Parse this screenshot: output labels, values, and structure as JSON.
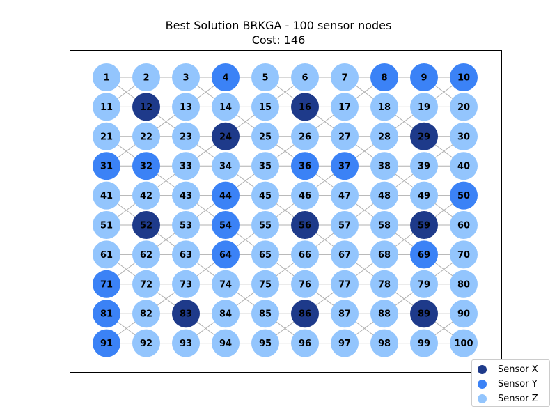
{
  "title_line1": "Best Solution BRKGA - 100 sensor nodes",
  "title_line2": "Cost: 146",
  "colors": {
    "sensor_x": "#1e3a8a",
    "sensor_y": "#3b82f6",
    "sensor_z": "#93c5fd",
    "edge": "#b0b0b0"
  },
  "legend": [
    {
      "label": "Sensor X",
      "type": "X"
    },
    {
      "label": "Sensor Y",
      "type": "Y"
    },
    {
      "label": "Sensor Z",
      "type": "Z"
    }
  ],
  "grid": {
    "rows": 10,
    "cols": 10
  },
  "nodes": [
    {
      "id": 1,
      "type": "Z"
    },
    {
      "id": 2,
      "type": "Z"
    },
    {
      "id": 3,
      "type": "Z"
    },
    {
      "id": 4,
      "type": "Y"
    },
    {
      "id": 5,
      "type": "Z"
    },
    {
      "id": 6,
      "type": "Z"
    },
    {
      "id": 7,
      "type": "Z"
    },
    {
      "id": 8,
      "type": "Y"
    },
    {
      "id": 9,
      "type": "Y"
    },
    {
      "id": 10,
      "type": "Y"
    },
    {
      "id": 11,
      "type": "Z"
    },
    {
      "id": 12,
      "type": "X"
    },
    {
      "id": 13,
      "type": "Z"
    },
    {
      "id": 14,
      "type": "Z"
    },
    {
      "id": 15,
      "type": "Z"
    },
    {
      "id": 16,
      "type": "X"
    },
    {
      "id": 17,
      "type": "Z"
    },
    {
      "id": 18,
      "type": "Z"
    },
    {
      "id": 19,
      "type": "Z"
    },
    {
      "id": 20,
      "type": "Z"
    },
    {
      "id": 21,
      "type": "Z"
    },
    {
      "id": 22,
      "type": "Z"
    },
    {
      "id": 23,
      "type": "Z"
    },
    {
      "id": 24,
      "type": "X"
    },
    {
      "id": 25,
      "type": "Z"
    },
    {
      "id": 26,
      "type": "Z"
    },
    {
      "id": 27,
      "type": "Z"
    },
    {
      "id": 28,
      "type": "Z"
    },
    {
      "id": 29,
      "type": "X"
    },
    {
      "id": 30,
      "type": "Z"
    },
    {
      "id": 31,
      "type": "Y"
    },
    {
      "id": 32,
      "type": "Y"
    },
    {
      "id": 33,
      "type": "Z"
    },
    {
      "id": 34,
      "type": "Z"
    },
    {
      "id": 35,
      "type": "Z"
    },
    {
      "id": 36,
      "type": "Y"
    },
    {
      "id": 37,
      "type": "Y"
    },
    {
      "id": 38,
      "type": "Z"
    },
    {
      "id": 39,
      "type": "Z"
    },
    {
      "id": 40,
      "type": "Z"
    },
    {
      "id": 41,
      "type": "Z"
    },
    {
      "id": 42,
      "type": "Z"
    },
    {
      "id": 43,
      "type": "Z"
    },
    {
      "id": 44,
      "type": "Y"
    },
    {
      "id": 45,
      "type": "Z"
    },
    {
      "id": 46,
      "type": "Z"
    },
    {
      "id": 47,
      "type": "Z"
    },
    {
      "id": 48,
      "type": "Z"
    },
    {
      "id": 49,
      "type": "Z"
    },
    {
      "id": 50,
      "type": "Y"
    },
    {
      "id": 51,
      "type": "Z"
    },
    {
      "id": 52,
      "type": "X"
    },
    {
      "id": 53,
      "type": "Z"
    },
    {
      "id": 54,
      "type": "Y"
    },
    {
      "id": 55,
      "type": "Z"
    },
    {
      "id": 56,
      "type": "X"
    },
    {
      "id": 57,
      "type": "Z"
    },
    {
      "id": 58,
      "type": "Z"
    },
    {
      "id": 59,
      "type": "X"
    },
    {
      "id": 60,
      "type": "Z"
    },
    {
      "id": 61,
      "type": "Z"
    },
    {
      "id": 62,
      "type": "Z"
    },
    {
      "id": 63,
      "type": "Z"
    },
    {
      "id": 64,
      "type": "Y"
    },
    {
      "id": 65,
      "type": "Z"
    },
    {
      "id": 66,
      "type": "Z"
    },
    {
      "id": 67,
      "type": "Z"
    },
    {
      "id": 68,
      "type": "Z"
    },
    {
      "id": 69,
      "type": "Y"
    },
    {
      "id": 70,
      "type": "Z"
    },
    {
      "id": 71,
      "type": "Y"
    },
    {
      "id": 72,
      "type": "Z"
    },
    {
      "id": 73,
      "type": "Z"
    },
    {
      "id": 74,
      "type": "Z"
    },
    {
      "id": 75,
      "type": "Z"
    },
    {
      "id": 76,
      "type": "Z"
    },
    {
      "id": 77,
      "type": "Z"
    },
    {
      "id": 78,
      "type": "Z"
    },
    {
      "id": 79,
      "type": "Z"
    },
    {
      "id": 80,
      "type": "Z"
    },
    {
      "id": 81,
      "type": "Y"
    },
    {
      "id": 82,
      "type": "Z"
    },
    {
      "id": 83,
      "type": "X"
    },
    {
      "id": 84,
      "type": "Z"
    },
    {
      "id": 85,
      "type": "Z"
    },
    {
      "id": 86,
      "type": "X"
    },
    {
      "id": 87,
      "type": "Z"
    },
    {
      "id": 88,
      "type": "Z"
    },
    {
      "id": 89,
      "type": "X"
    },
    {
      "id": 90,
      "type": "Z"
    },
    {
      "id": 91,
      "type": "Y"
    },
    {
      "id": 92,
      "type": "Z"
    },
    {
      "id": 93,
      "type": "Z"
    },
    {
      "id": 94,
      "type": "Z"
    },
    {
      "id": 95,
      "type": "Z"
    },
    {
      "id": 96,
      "type": "Z"
    },
    {
      "id": 97,
      "type": "Z"
    },
    {
      "id": 98,
      "type": "Z"
    },
    {
      "id": 99,
      "type": "Z"
    },
    {
      "id": 100,
      "type": "Z"
    }
  ]
}
